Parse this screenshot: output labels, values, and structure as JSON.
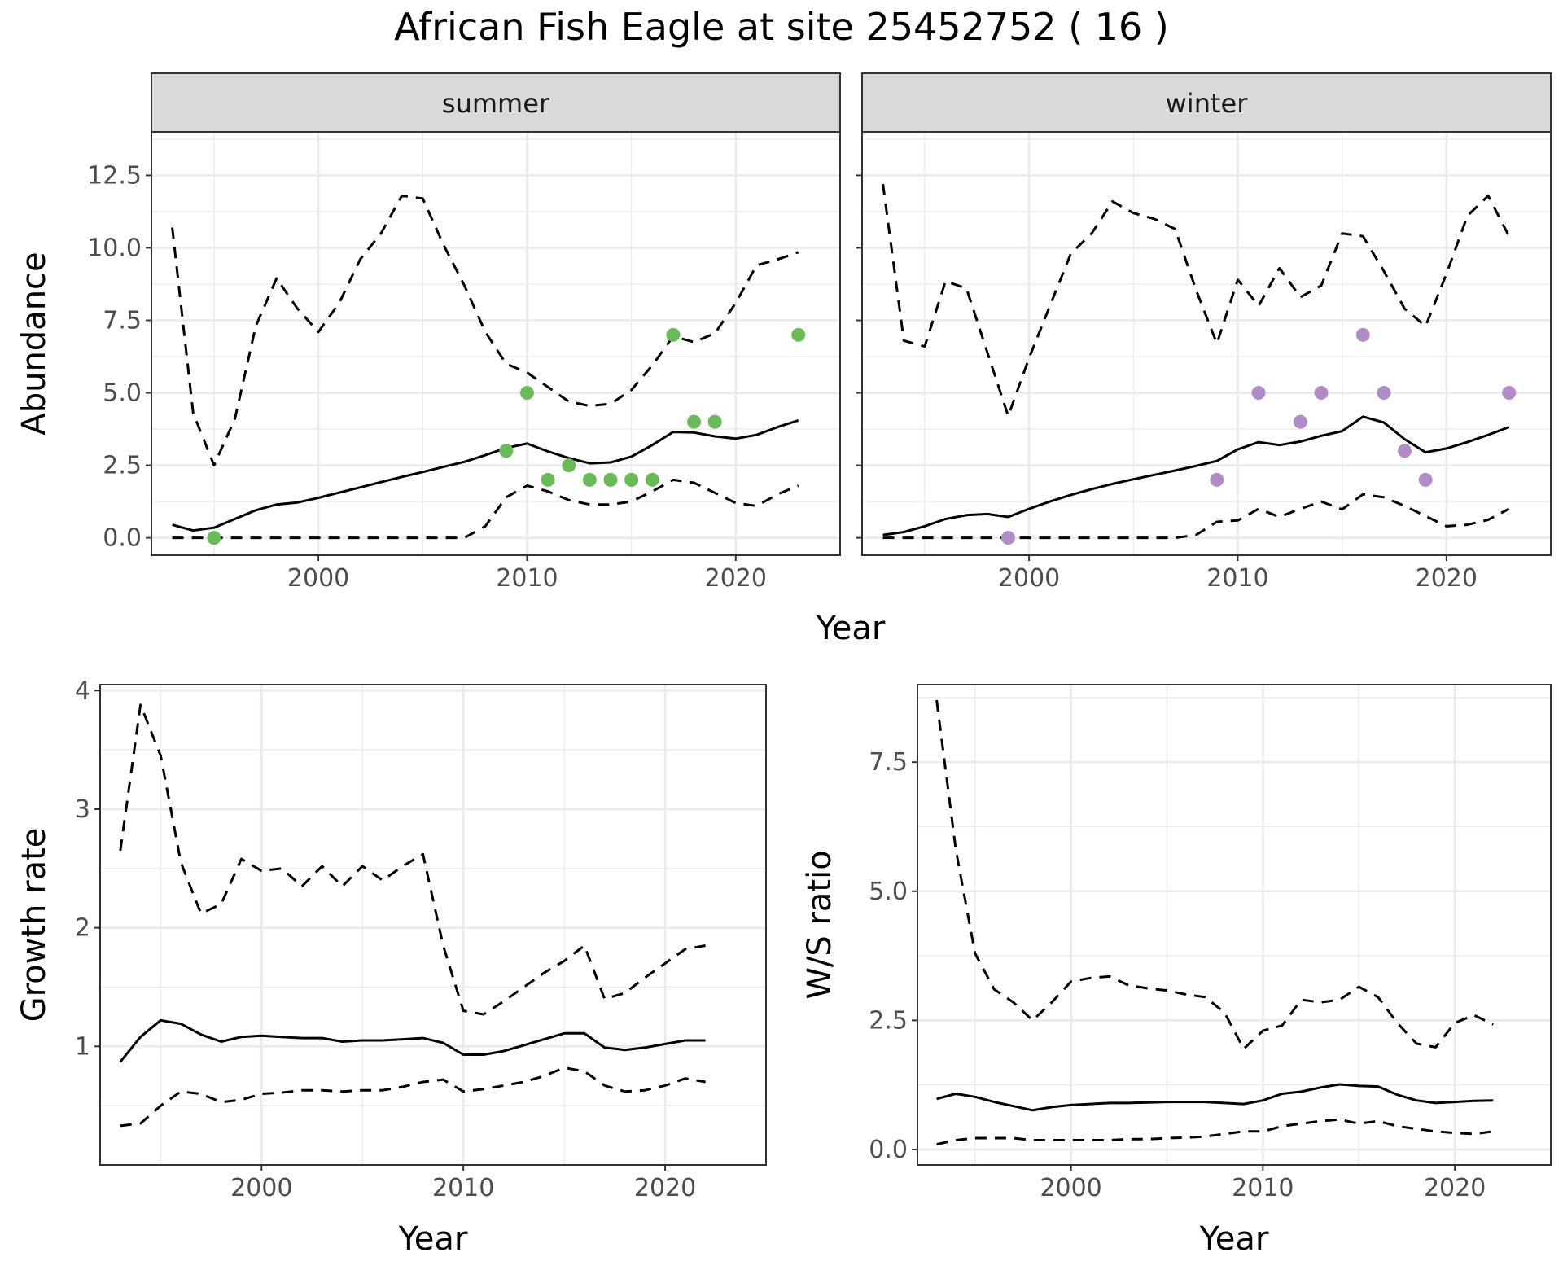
{
  "title": "African Fish Eagle at site 25452752 ( 16 )",
  "colors": {
    "summer_points": "#6aba5a",
    "winter_points": "#b18cc8",
    "line": "#000000",
    "grid": "#ebebeb",
    "strip": "#d9d9d9"
  },
  "chart_data": [
    {
      "type": "line",
      "panel": "abundance",
      "strips": [
        "summer",
        "winter"
      ],
      "xlabel": "Year",
      "ylabel": "Abundance",
      "xlim": [
        1992,
        2025
      ],
      "ylim": [
        -0.6,
        14
      ],
      "xticks": [
        2000,
        2010,
        2020
      ],
      "yticks": [
        0,
        2.5,
        5,
        7.5,
        10,
        12.5
      ],
      "ytick_labels": [
        "0.0",
        "2.5",
        "5.0",
        "7.5",
        "10.0",
        "12.5"
      ],
      "facets": [
        {
          "name": "summer",
          "x": [
            1993,
            1994,
            1995,
            1996,
            1997,
            1998,
            1999,
            2000,
            2001,
            2002,
            2003,
            2004,
            2005,
            2006,
            2007,
            2008,
            2009,
            2010,
            2011,
            2012,
            2013,
            2014,
            2015,
            2016,
            2017,
            2018,
            2019,
            2020,
            2021,
            2022,
            2023
          ],
          "mean": [
            0.45,
            0.25,
            0.35,
            0.65,
            0.95,
            1.15,
            1.22,
            1.38,
            1.56,
            1.74,
            1.92,
            2.1,
            2.27,
            2.45,
            2.62,
            2.85,
            3.1,
            3.25,
            2.98,
            2.75,
            2.57,
            2.6,
            2.8,
            3.2,
            3.65,
            3.63,
            3.5,
            3.42,
            3.55,
            3.82,
            4.05
          ],
          "upper": [
            10.7,
            4.3,
            2.5,
            4.1,
            7.3,
            8.95,
            7.9,
            7.1,
            8.1,
            9.6,
            10.5,
            11.8,
            11.7,
            10.1,
            8.7,
            7.1,
            6.0,
            5.7,
            5.2,
            4.7,
            4.55,
            4.62,
            5.1,
            5.95,
            6.95,
            6.75,
            7.05,
            8.1,
            9.4,
            9.6,
            9.85
          ],
          "lower": [
            0,
            0,
            0,
            0,
            0,
            0,
            0,
            0,
            0,
            0,
            0,
            0,
            0,
            0,
            0,
            0.4,
            1.4,
            1.8,
            1.6,
            1.3,
            1.15,
            1.15,
            1.25,
            1.6,
            2.0,
            1.9,
            1.55,
            1.2,
            1.1,
            1.5,
            1.8
          ],
          "points_x": [
            1995,
            2009,
            2010,
            2011,
            2012,
            2013,
            2014,
            2015,
            2016,
            2017,
            2018,
            2019,
            2023
          ],
          "points_y": [
            0,
            3,
            5,
            2,
            2.5,
            2,
            2,
            2,
            2,
            7,
            4,
            4,
            7
          ]
        },
        {
          "name": "winter",
          "x": [
            1993,
            1994,
            1995,
            1996,
            1997,
            1998,
            1999,
            2000,
            2001,
            2002,
            2003,
            2004,
            2005,
            2006,
            2007,
            2008,
            2009,
            2010,
            2011,
            2012,
            2013,
            2014,
            2015,
            2016,
            2017,
            2018,
            2019,
            2020,
            2021,
            2022,
            2023
          ],
          "mean": [
            0.1,
            0.2,
            0.4,
            0.65,
            0.78,
            0.82,
            0.72,
            1.0,
            1.25,
            1.48,
            1.68,
            1.86,
            2.02,
            2.17,
            2.32,
            2.48,
            2.65,
            3.05,
            3.3,
            3.2,
            3.32,
            3.52,
            3.68,
            4.18,
            3.98,
            3.4,
            2.95,
            3.08,
            3.3,
            3.55,
            3.82
          ],
          "upper": [
            12.2,
            6.8,
            6.6,
            8.85,
            8.6,
            6.4,
            4.2,
            6.2,
            8.0,
            9.8,
            10.5,
            11.6,
            11.2,
            11.0,
            10.65,
            8.55,
            6.7,
            8.9,
            8.0,
            9.3,
            8.3,
            8.7,
            10.5,
            10.4,
            9.2,
            7.9,
            7.3,
            9.1,
            11.1,
            11.8,
            10.4
          ],
          "lower": [
            0,
            0,
            0,
            0,
            0,
            0,
            0,
            0,
            0,
            0,
            0,
            0,
            0,
            0,
            0,
            0.1,
            0.55,
            0.6,
            1.0,
            0.72,
            1.0,
            1.25,
            0.98,
            1.5,
            1.4,
            1.1,
            0.75,
            0.4,
            0.45,
            0.62,
            1.0
          ],
          "points_x": [
            1999,
            2009,
            2011,
            2013,
            2014,
            2016,
            2017,
            2018,
            2019,
            2023
          ],
          "points_y": [
            0,
            2,
            5,
            4,
            5,
            7,
            5,
            3,
            2,
            5
          ]
        }
      ]
    },
    {
      "type": "line",
      "panel": "growth",
      "xlabel": "Year",
      "ylabel": "Growth rate",
      "xlim": [
        1992,
        2025
      ],
      "ylim": [
        0.0,
        4.05
      ],
      "xticks": [
        2000,
        2010,
        2020
      ],
      "yticks": [
        1,
        2,
        3,
        4
      ],
      "ytick_labels": [
        "1",
        "2",
        "3",
        "4"
      ],
      "x": [
        1993,
        1994,
        1995,
        1996,
        1997,
        1998,
        1999,
        2000,
        2001,
        2002,
        2003,
        2004,
        2005,
        2006,
        2007,
        2008,
        2009,
        2010,
        2011,
        2012,
        2013,
        2014,
        2015,
        2016,
        2017,
        2018,
        2019,
        2020,
        2021,
        2022
      ],
      "mean": [
        0.87,
        1.08,
        1.22,
        1.19,
        1.1,
        1.04,
        1.08,
        1.09,
        1.08,
        1.07,
        1.07,
        1.04,
        1.05,
        1.05,
        1.06,
        1.07,
        1.03,
        0.93,
        0.93,
        0.96,
        1.01,
        1.06,
        1.11,
        1.11,
        0.99,
        0.97,
        0.99,
        1.02,
        1.05,
        1.05
      ],
      "upper": [
        2.65,
        3.88,
        3.45,
        2.55,
        2.12,
        2.2,
        2.58,
        2.48,
        2.5,
        2.35,
        2.52,
        2.35,
        2.52,
        2.4,
        2.52,
        2.62,
        1.85,
        1.3,
        1.27,
        1.38,
        1.5,
        1.62,
        1.72,
        1.85,
        1.4,
        1.45,
        1.58,
        1.7,
        1.82,
        1.85
      ],
      "lower": [
        0.33,
        0.35,
        0.5,
        0.62,
        0.6,
        0.53,
        0.55,
        0.6,
        0.61,
        0.63,
        0.63,
        0.62,
        0.63,
        0.63,
        0.66,
        0.7,
        0.72,
        0.62,
        0.64,
        0.67,
        0.7,
        0.75,
        0.82,
        0.79,
        0.67,
        0.62,
        0.63,
        0.67,
        0.73,
        0.7
      ]
    },
    {
      "type": "line",
      "panel": "ws_ratio",
      "xlabel": "Year",
      "ylabel": "W/S ratio",
      "xlim": [
        1992,
        2025
      ],
      "ylim": [
        -0.3,
        9.0
      ],
      "xticks": [
        2000,
        2010,
        2020
      ],
      "yticks": [
        0,
        2.5,
        5,
        7.5
      ],
      "ytick_labels": [
        "0.0",
        "2.5",
        "5.0",
        "7.5"
      ],
      "x": [
        1993,
        1994,
        1995,
        1996,
        1997,
        1998,
        1999,
        2000,
        2001,
        2002,
        2003,
        2004,
        2005,
        2006,
        2007,
        2008,
        2009,
        2010,
        2011,
        2012,
        2013,
        2014,
        2015,
        2016,
        2017,
        2018,
        2019,
        2020,
        2021,
        2022
      ],
      "mean": [
        0.98,
        1.08,
        1.02,
        0.92,
        0.84,
        0.76,
        0.82,
        0.86,
        0.88,
        0.9,
        0.9,
        0.91,
        0.92,
        0.92,
        0.92,
        0.9,
        0.88,
        0.95,
        1.08,
        1.12,
        1.2,
        1.26,
        1.23,
        1.22,
        1.06,
        0.95,
        0.9,
        0.92,
        0.94,
        0.95
      ],
      "upper": [
        8.7,
        5.8,
        3.8,
        3.1,
        2.85,
        2.5,
        2.85,
        3.25,
        3.32,
        3.35,
        3.18,
        3.12,
        3.08,
        3.0,
        2.95,
        2.65,
        1.95,
        2.3,
        2.4,
        2.9,
        2.85,
        2.9,
        3.15,
        2.95,
        2.45,
        2.05,
        1.98,
        2.45,
        2.6,
        2.42
      ],
      "lower": [
        0.1,
        0.18,
        0.22,
        0.22,
        0.22,
        0.18,
        0.18,
        0.18,
        0.18,
        0.18,
        0.2,
        0.2,
        0.22,
        0.23,
        0.25,
        0.3,
        0.35,
        0.35,
        0.45,
        0.5,
        0.55,
        0.58,
        0.5,
        0.55,
        0.45,
        0.4,
        0.35,
        0.32,
        0.3,
        0.35
      ]
    }
  ]
}
